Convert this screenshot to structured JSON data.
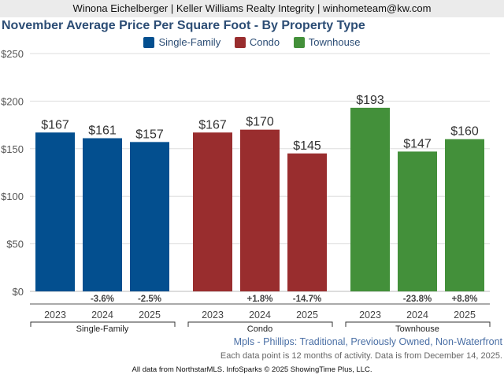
{
  "header": {
    "agent": "Winona Eichelberger | Keller Williams Realty Integrity | winhometeam@kw.com"
  },
  "chart_data": {
    "type": "bar",
    "title": "November Average Price Per Square Foot - By Property Type",
    "ylim": [
      0,
      250
    ],
    "yticks": [
      "$0",
      "$50",
      "$100",
      "$150",
      "$200",
      "$250"
    ],
    "ytick_values": [
      0,
      50,
      100,
      150,
      200,
      250
    ],
    "legend": [
      {
        "name": "Single-Family",
        "color": "#034f8f"
      },
      {
        "name": "Condo",
        "color": "#992d2e"
      },
      {
        "name": "Townhouse",
        "color": "#43903a"
      }
    ],
    "groups": [
      {
        "name": "Single-Family",
        "color": "#034f8f",
        "years": [
          "2023",
          "2024",
          "2025"
        ],
        "values": [
          167,
          161,
          157
        ],
        "labels": [
          "$167",
          "$161",
          "$157"
        ],
        "changes": [
          "",
          "-3.6%",
          "-2.5%"
        ]
      },
      {
        "name": "Condo",
        "color": "#992d2e",
        "years": [
          "2023",
          "2024",
          "2025"
        ],
        "values": [
          167,
          170,
          145
        ],
        "labels": [
          "$167",
          "$170",
          "$145"
        ],
        "changes": [
          "",
          "+1.8%",
          "-14.7%"
        ]
      },
      {
        "name": "Townhouse",
        "color": "#43903a",
        "years": [
          "2023",
          "2024",
          "2025"
        ],
        "values": [
          193,
          147,
          160
        ],
        "labels": [
          "$193",
          "$147",
          "$160"
        ],
        "changes": [
          "",
          "-23.8%",
          "+8.8%"
        ]
      }
    ]
  },
  "footer": {
    "source": "Mpls - Phillips: Traditional, Previously Owned, Non-Waterfront",
    "note": "Each data point is 12 months of activity. Data is from December 14, 2025.",
    "copyright": "All data from NorthstarMLS. InfoSparks © 2025 ShowingTime Plus, LLC."
  }
}
